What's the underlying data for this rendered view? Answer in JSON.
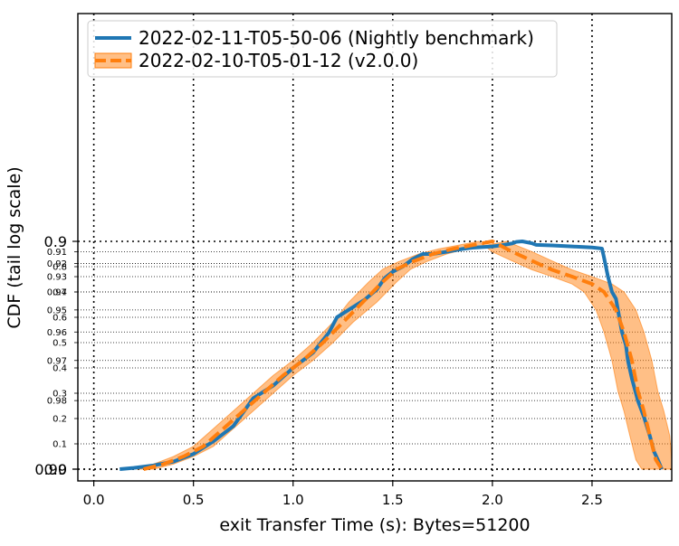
{
  "chart_data": {
    "type": "line",
    "title": "",
    "xlabel": "exit Transfer Time (s): Bytes=51200",
    "ylabel": "CDF (tail log scale)",
    "xlim": [
      -0.08,
      2.9
    ],
    "y_scale": "tail-log",
    "ylim": [
      -0.04,
      0.99
    ],
    "grid": true,
    "legend_position": "top-left",
    "x_ticks": [
      {
        "value": 0.0,
        "label": "0.0"
      },
      {
        "value": 0.5,
        "label": "0.5"
      },
      {
        "value": 1.0,
        "label": "1.0"
      },
      {
        "value": 1.5,
        "label": "1.5"
      },
      {
        "value": 2.0,
        "label": "2.0"
      },
      {
        "value": 2.5,
        "label": "2.5"
      }
    ],
    "y_major_ticks": [
      {
        "value": 0.0,
        "label": "0.0"
      },
      {
        "value": 0.9,
        "label": "0.9"
      },
      {
        "value": 0.99,
        "label": "0.99"
      }
    ],
    "y_minor_ticks": [
      {
        "value": 0.1,
        "label": "0.1"
      },
      {
        "value": 0.2,
        "label": "0.2"
      },
      {
        "value": 0.3,
        "label": "0.3"
      },
      {
        "value": 0.4,
        "label": "0.4"
      },
      {
        "value": 0.5,
        "label": "0.5"
      },
      {
        "value": 0.6,
        "label": "0.6"
      },
      {
        "value": 0.7,
        "label": "0.7"
      },
      {
        "value": 0.8,
        "label": "0.8"
      },
      {
        "value": 0.91,
        "label": "0.91"
      },
      {
        "value": 0.92,
        "label": "0.92"
      },
      {
        "value": 0.93,
        "label": "0.93"
      },
      {
        "value": 0.94,
        "label": "0.94"
      },
      {
        "value": 0.95,
        "label": "0.95"
      },
      {
        "value": 0.96,
        "label": "0.96"
      },
      {
        "value": 0.97,
        "label": "0.97"
      },
      {
        "value": 0.98,
        "label": "0.98"
      }
    ],
    "series": [
      {
        "name": "2022-02-11-T05-50-06 (Nightly benchmark)",
        "color": "#1f77b4",
        "style": "solid",
        "x": [
          0.13,
          0.2,
          0.3,
          0.4,
          0.5,
          0.6,
          0.7,
          0.8,
          0.9,
          1.0,
          1.1,
          1.18,
          1.22,
          1.3,
          1.36,
          1.42,
          1.46,
          1.5,
          1.55,
          1.6,
          1.65,
          1.7,
          1.78,
          1.85,
          1.9,
          2.0,
          2.05,
          2.1,
          2.12,
          2.15,
          2.2,
          2.22,
          2.3,
          2.4,
          2.5,
          2.55,
          2.56,
          2.58,
          2.6,
          2.62,
          2.63,
          2.65,
          2.67,
          2.68,
          2.7,
          2.73,
          2.76,
          2.79,
          2.81,
          2.83,
          2.85
        ],
        "y": [
          0.0,
          0.005,
          0.015,
          0.03,
          0.06,
          0.11,
          0.17,
          0.28,
          0.33,
          0.4,
          0.46,
          0.54,
          0.6,
          0.64,
          0.67,
          0.71,
          0.755,
          0.78,
          0.8,
          0.83,
          0.85,
          0.85,
          0.86,
          0.87,
          0.875,
          0.88,
          0.885,
          0.892,
          0.898,
          0.9,
          0.902,
          0.9035,
          0.904,
          0.905,
          0.906,
          0.907,
          0.915,
          0.93,
          0.94,
          0.944,
          0.95,
          0.96,
          0.965,
          0.97,
          0.975,
          0.98,
          0.983,
          0.986,
          0.988,
          0.989,
          0.99
        ]
      },
      {
        "name": "2022-02-10-T05-01-12 (v2.0.0)",
        "color": "#ff7f0e",
        "style": "dashed",
        "x": [
          0.25,
          0.35,
          0.45,
          0.55,
          0.65,
          0.75,
          0.85,
          0.95,
          1.05,
          1.15,
          1.25,
          1.35,
          1.45,
          1.52,
          1.6,
          1.7,
          1.8,
          1.9,
          2.0,
          2.1,
          2.2,
          2.3,
          2.4,
          2.5,
          2.56,
          2.62,
          2.66,
          2.7,
          2.73,
          2.76,
          2.79,
          2.82,
          2.85
        ],
        "y": [
          0.0,
          0.02,
          0.05,
          0.09,
          0.16,
          0.23,
          0.3,
          0.37,
          0.43,
          0.5,
          0.58,
          0.66,
          0.74,
          0.79,
          0.82,
          0.85,
          0.87,
          0.885,
          0.9,
          0.91,
          0.918,
          0.925,
          0.93,
          0.935,
          0.94,
          0.95,
          0.96,
          0.97,
          0.978,
          0.982,
          0.986,
          0.989,
          0.99
        ]
      }
    ]
  }
}
